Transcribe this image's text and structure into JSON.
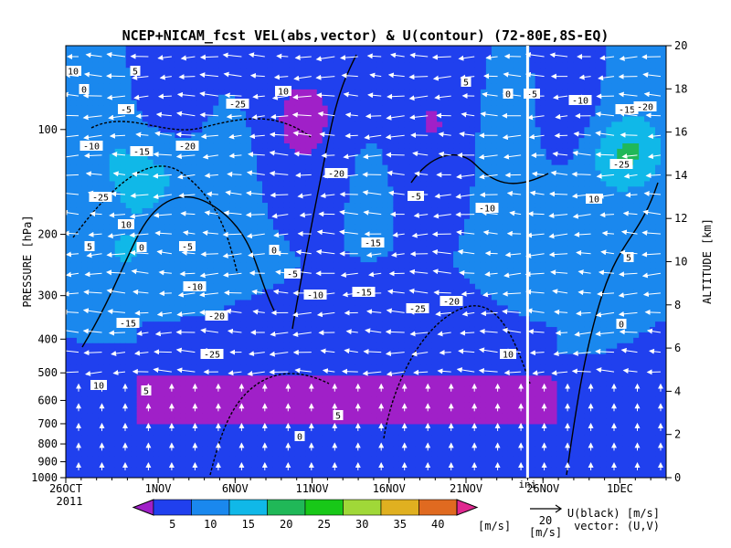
{
  "chart_data": {
    "type": "heatmap",
    "title": "NCEP+NICAM_fcst VEL(abs,vector) & U(contour)  (72-80E,8S-EQ)",
    "ylabel_left": "PRESSURE [hPa]",
    "ylabel_right": "ALTITUDE [km]",
    "x_tick_labels": [
      "26OCT",
      "1NOV",
      "6NOV",
      "11NOV",
      "16NOV",
      "21NOV",
      "26NOV",
      "1DEC"
    ],
    "x_year_label": "2011",
    "x_range_days": [
      "2011-10-26",
      "2011-12-04"
    ],
    "init_marker_label": "ini",
    "init_marker_date": "2011-11-25",
    "y_left_ticks": [
      "100",
      "200",
      "300",
      "400",
      "500",
      "600",
      "700",
      "800",
      "900",
      "1000"
    ],
    "y_left_tick_values": [
      100,
      200,
      300,
      400,
      500,
      600,
      700,
      800,
      900,
      1000
    ],
    "y_right_ticks": [
      "0",
      "2",
      "4",
      "6",
      "8",
      "10",
      "12",
      "14",
      "16",
      "18",
      "20"
    ],
    "y_right_tick_values": [
      0,
      2,
      4,
      6,
      8,
      10,
      12,
      14,
      16,
      18,
      20
    ],
    "y_range_km": [
      0,
      20
    ],
    "colorbar": {
      "levels": [
        "5",
        "10",
        "15",
        "20",
        "25",
        "30",
        "35",
        "40"
      ],
      "unit": "[m/s]",
      "colors": [
        "#a020c8",
        "#2040ee",
        "#1a88ee",
        "#10b8e8",
        "#20b858",
        "#18c818",
        "#a0d838",
        "#e0b020",
        "#e06a20",
        "#e02890"
      ]
    },
    "vector_reference": {
      "value": "20",
      "unit": "[m/s]"
    },
    "legend_text": {
      "line1": "U(black) [m/s]",
      "line2": "vector: (U,V)"
    },
    "contour_labels": [
      "10",
      "5",
      "0",
      "-5",
      "-10",
      "-15",
      "-20",
      "-25"
    ],
    "colors": {
      "init_line": "#ffffff",
      "init_label": "#20a020",
      "contour": "#000000",
      "vector": "#ffffff"
    }
  }
}
